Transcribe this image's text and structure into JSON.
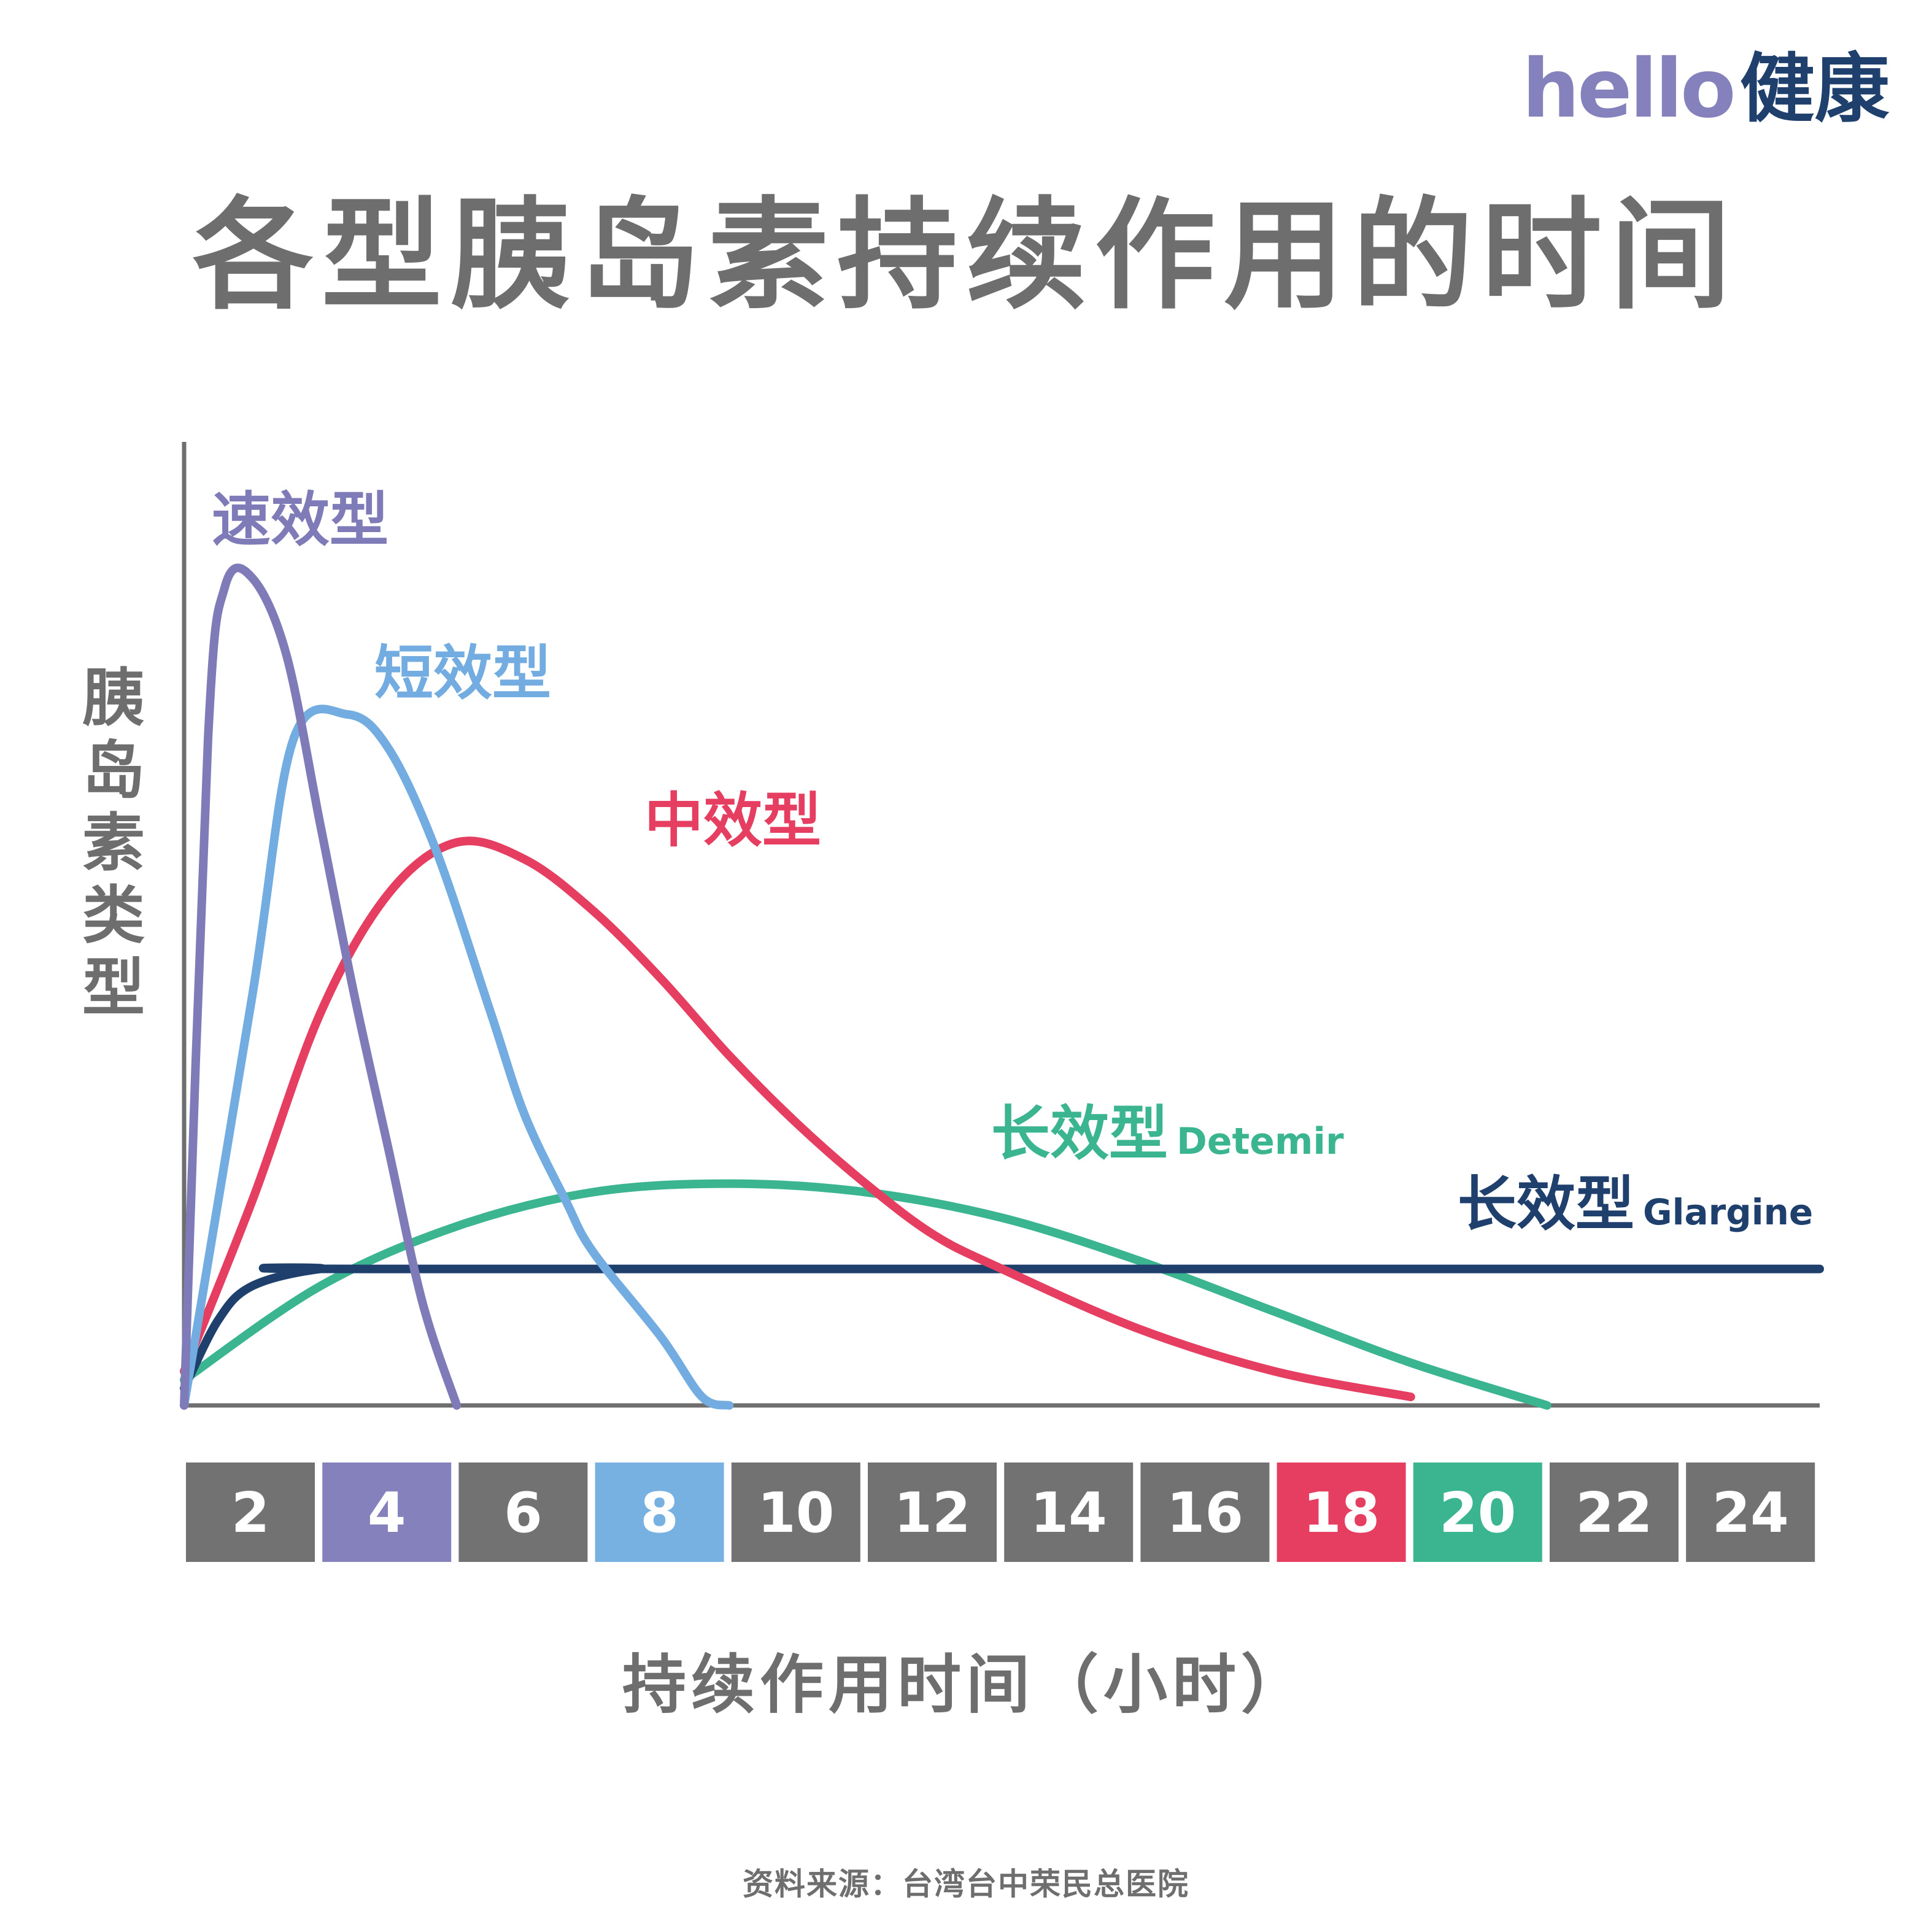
{
  "logo": {
    "en": "hello",
    "zh": "健康"
  },
  "title": "各型胰岛素持续作用的时间",
  "source": "资料来源：台湾台中荣民总医院",
  "chart_data": {
    "type": "line",
    "title": "各型胰岛素持续作用的时间",
    "xlabel": "持续作用时间（小时）",
    "ylabel": "胰岛素类型",
    "xlim": [
      0,
      24
    ],
    "ylim": [
      0,
      100
    ],
    "x_ticks": [
      2,
      4,
      6,
      8,
      10,
      12,
      14,
      16,
      18,
      20,
      22,
      24
    ],
    "tick_colors": {
      "default": "#727272",
      "4": "#8581bd",
      "8": "#76b1e2",
      "18": "#e53e61",
      "20": "#3bb590"
    },
    "grid": false,
    "legend": "inline labels",
    "series": [
      {
        "name": "速效型",
        "sub": "",
        "color": "#7f7bb8",
        "points": [
          [
            0,
            0
          ],
          [
            0.35,
            78
          ],
          [
            0.6,
            96
          ],
          [
            1,
            97
          ],
          [
            1.5,
            88
          ],
          [
            2,
            68
          ],
          [
            2.5,
            48
          ],
          [
            3,
            30
          ],
          [
            3.5,
            12
          ],
          [
            4,
            0
          ]
        ]
      },
      {
        "name": "短效型",
        "sub": "",
        "color": "#73ace0",
        "points": [
          [
            0,
            0
          ],
          [
            1,
            48
          ],
          [
            1.6,
            78
          ],
          [
            2.4,
            81
          ],
          [
            3,
            77
          ],
          [
            3.7,
            65
          ],
          [
            4.5,
            46
          ],
          [
            5,
            34
          ],
          [
            5.6,
            24
          ],
          [
            6,
            18
          ],
          [
            7,
            8
          ],
          [
            7.6,
            1
          ],
          [
            8,
            0
          ]
        ]
      },
      {
        "name": "中效型",
        "sub": "",
        "color": "#e53e61",
        "points": [
          [
            0,
            4
          ],
          [
            1,
            24
          ],
          [
            2,
            46
          ],
          [
            3,
            60
          ],
          [
            4,
            66
          ],
          [
            5,
            64
          ],
          [
            6,
            58
          ],
          [
            7,
            50
          ],
          [
            8,
            41
          ],
          [
            9,
            33
          ],
          [
            10,
            26
          ],
          [
            11,
            20
          ],
          [
            12,
            16
          ],
          [
            14,
            9
          ],
          [
            16,
            4
          ],
          [
            18,
            1
          ]
        ]
      },
      {
        "name": "长效型",
        "sub": "Detemir",
        "color": "#3bb590",
        "points": [
          [
            0,
            3
          ],
          [
            2,
            14
          ],
          [
            4,
            21
          ],
          [
            6,
            25
          ],
          [
            8,
            26
          ],
          [
            10,
            25
          ],
          [
            12,
            22
          ],
          [
            14,
            17
          ],
          [
            16,
            11
          ],
          [
            18,
            5
          ],
          [
            20,
            0
          ]
        ]
      },
      {
        "name": "长效型",
        "sub": "Glargine",
        "color": "#1f3f6d",
        "points": [
          [
            0,
            2
          ],
          [
            0.5,
            10
          ],
          [
            1,
            14
          ],
          [
            2,
            16
          ],
          [
            3,
            16
          ],
          [
            24,
            16
          ]
        ]
      }
    ]
  }
}
